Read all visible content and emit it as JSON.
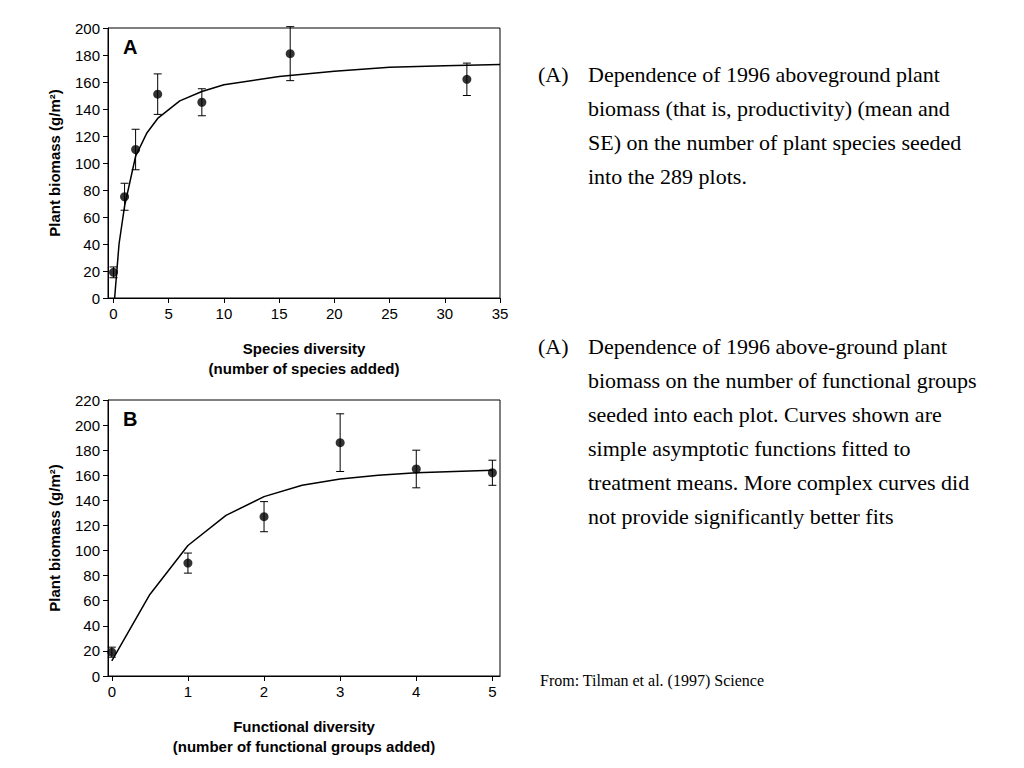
{
  "chart_data": [
    {
      "type": "scatter",
      "title": "A",
      "x_label": "Species diversity\n(number of species added)",
      "y_label": "Plant biomass (g/m²)",
      "xlim": [
        -0.5,
        35
      ],
      "xticks": [
        0,
        5,
        10,
        15,
        20,
        25,
        30,
        35
      ],
      "ylim": [
        0,
        200
      ],
      "yticks": [
        0,
        20,
        40,
        60,
        80,
        100,
        120,
        140,
        160,
        180,
        200
      ],
      "grid": false,
      "series": [
        {
          "type": "scatter",
          "marker": "circle",
          "color": "#000000",
          "x": [
            0,
            1,
            2,
            4,
            8,
            16,
            32
          ],
          "values": [
            19,
            75,
            110,
            151,
            145,
            181,
            162
          ],
          "errors": [
            4,
            10,
            15,
            15,
            10,
            20,
            12
          ]
        },
        {
          "type": "line",
          "line_style": "solid",
          "color": "#000000",
          "x": [
            0.1,
            0.5,
            1,
            2,
            3,
            4,
            6,
            8,
            10,
            15,
            20,
            25,
            30,
            35
          ],
          "values": [
            0,
            40,
            68,
            105,
            122,
            133,
            146,
            153,
            158,
            164,
            168,
            171,
            172,
            173
          ]
        }
      ],
      "caption": {
        "label": "(A)",
        "text": "Dependence of 1996 aboveground plant biomass (that is, productivity) (mean and SE) on the number of plant species seeded into the 289 plots."
      }
    },
    {
      "type": "scatter",
      "title": "B",
      "x_label": "Functional diversity\n(number of functional groups added)",
      "y_label": "Plant biomass (g/m²)",
      "xlim": [
        -0.05,
        5.1
      ],
      "xticks": [
        0,
        1,
        2,
        3,
        4,
        5
      ],
      "ylim": [
        0,
        220
      ],
      "yticks": [
        0,
        20,
        40,
        60,
        80,
        100,
        120,
        140,
        160,
        180,
        200,
        220
      ],
      "grid": false,
      "series": [
        {
          "type": "scatter",
          "marker": "circle",
          "color": "#000000",
          "x": [
            0,
            1,
            2,
            3,
            4,
            5
          ],
          "values": [
            19,
            90,
            127,
            186,
            165,
            162
          ],
          "errors": [
            4,
            8,
            12,
            23,
            15,
            10
          ]
        },
        {
          "type": "line",
          "line_style": "solid",
          "color": "#000000",
          "x": [
            0,
            0.5,
            1,
            1.5,
            2,
            2.5,
            3,
            3.5,
            4,
            4.5,
            5
          ],
          "values": [
            12,
            65,
            104,
            128,
            143,
            152,
            157,
            160,
            162,
            163,
            164
          ]
        }
      ],
      "caption": {
        "label": "(A)",
        "text": "Dependence of 1996 above-ground plant biomass on the number of functional groups seeded into each plot. Curves shown are simple asymptotic functions fitted to treatment means. More complex curves did not provide significantly better fits"
      }
    }
  ],
  "source": "From: Tilman et al. (1997) Science"
}
